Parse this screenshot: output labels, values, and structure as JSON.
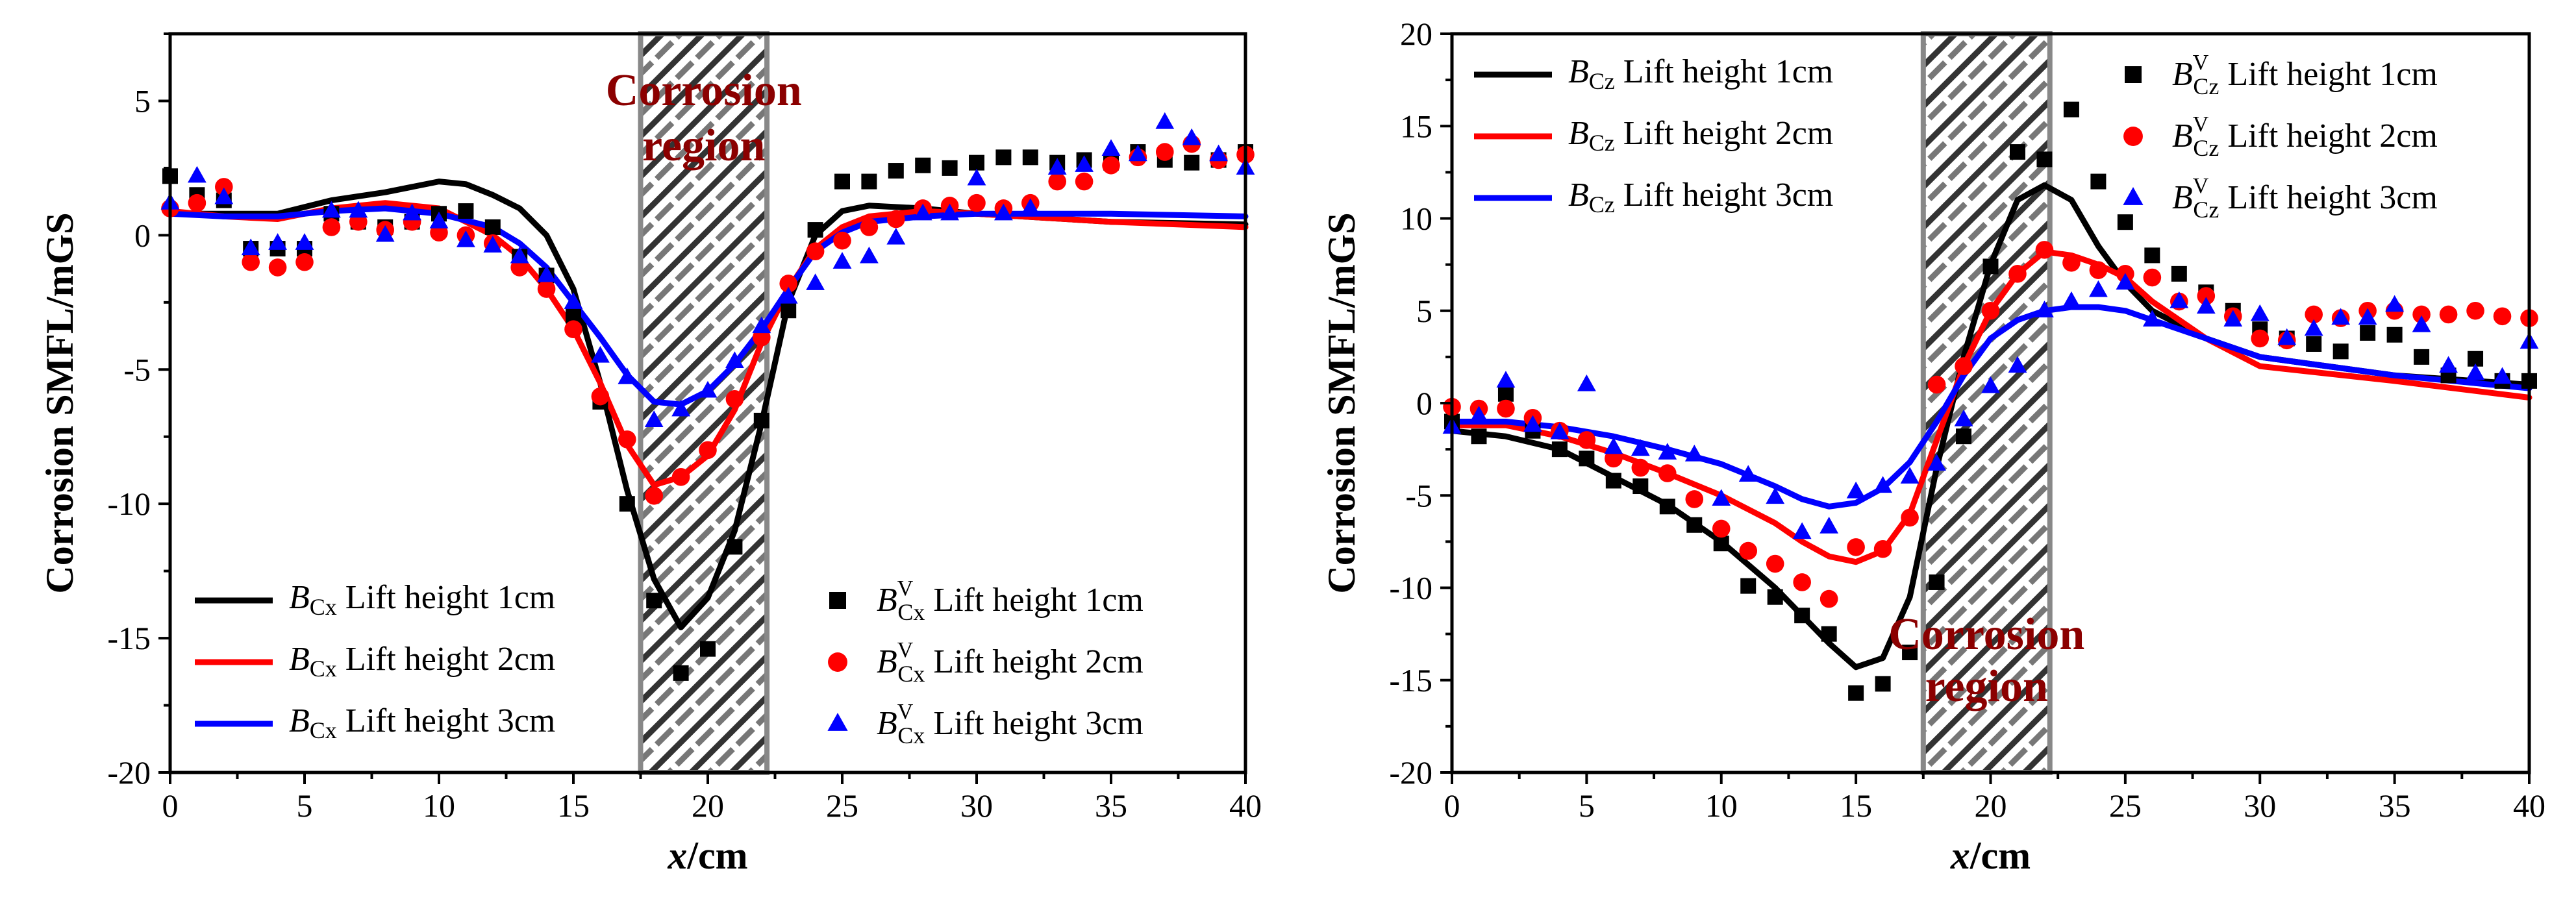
{
  "colors": {
    "s1": "#000000",
    "s2": "#ff0000",
    "s3": "#0000ff",
    "region_text": "#8b0000",
    "region_border": "#888888"
  },
  "chart_data": [
    {
      "type": "line+scatter",
      "ylabel": "Corrosion SMFL/mGS",
      "xlabel": "x/cm",
      "xlim": [
        0,
        40
      ],
      "ylim": [
        -20,
        7.5
      ],
      "xticks": [
        0,
        5,
        10,
        15,
        20,
        25,
        30,
        35,
        40
      ],
      "yticks": [
        -20,
        -15,
        -10,
        -5,
        0,
        5
      ],
      "region": {
        "x": [
          17.5,
          22.2
        ],
        "label_line1": "Corrosion",
        "label_line2": "region",
        "label_pos": "top"
      },
      "lines": [
        {
          "name": "B_Cx Lift height 1cm",
          "var": "B",
          "sub": "Cx",
          "label": " Lift height 1cm",
          "color": "#000000",
          "x": [
            0,
            2,
            4,
            6,
            8,
            10,
            11,
            12,
            13,
            14,
            15,
            16,
            17,
            18,
            19,
            20,
            21,
            22,
            23,
            24,
            25,
            26,
            28,
            30,
            35,
            40
          ],
          "y": [
            0.8,
            0.8,
            0.8,
            1.3,
            1.6,
            2.0,
            1.9,
            1.5,
            1.0,
            0.0,
            -2.0,
            -5.5,
            -9.5,
            -12.8,
            -14.6,
            -13.5,
            -11.0,
            -7.0,
            -2.5,
            0.0,
            0.9,
            1.1,
            1.0,
            0.8,
            0.5,
            0.4
          ]
        },
        {
          "name": "B_Cx Lift height 2cm",
          "var": "B",
          "sub": "Cx",
          "label": " Lift height 2cm",
          "color": "#ff0000",
          "x": [
            0,
            2,
            4,
            6,
            8,
            10,
            12,
            13,
            14,
            15,
            16,
            17,
            18,
            19,
            20,
            21,
            22,
            23,
            24,
            25,
            26,
            28,
            30,
            35,
            40
          ],
          "y": [
            0.9,
            0.7,
            0.6,
            1.0,
            1.2,
            1.0,
            0.0,
            -0.8,
            -2.0,
            -3.5,
            -5.5,
            -7.8,
            -9.3,
            -9.0,
            -8.2,
            -6.5,
            -4.0,
            -2.0,
            -0.5,
            0.3,
            0.7,
            0.9,
            0.8,
            0.5,
            0.3
          ]
        },
        {
          "name": "B_Cx Lift height 3cm",
          "var": "B",
          "sub": "Cx",
          "label": " Lift height 3cm",
          "color": "#0000ff",
          "x": [
            0,
            2,
            4,
            6,
            8,
            10,
            12,
            13,
            14,
            15,
            16,
            17,
            18,
            19,
            20,
            21,
            22,
            23,
            24,
            25,
            26,
            28,
            30,
            35,
            40
          ],
          "y": [
            0.8,
            0.7,
            0.7,
            0.9,
            1.0,
            0.8,
            0.3,
            -0.3,
            -1.2,
            -2.5,
            -3.8,
            -5.2,
            -6.2,
            -6.3,
            -5.8,
            -4.8,
            -3.5,
            -2.0,
            -0.6,
            0.1,
            0.5,
            0.7,
            0.8,
            0.8,
            0.7
          ]
        }
      ],
      "scatter": [
        {
          "name": "B^V_Cx Lift height 1cm",
          "var": "B",
          "sup": "V",
          "sub": "Cx",
          "label": " Lift height 1cm",
          "color": "#000000",
          "marker": "square",
          "x": [
            0,
            1,
            2,
            3,
            4,
            5,
            6,
            7,
            8,
            9,
            10,
            11,
            12,
            13,
            14,
            15,
            16,
            17,
            18,
            19,
            20,
            21,
            22,
            23,
            24,
            25,
            26,
            27,
            28,
            29,
            30,
            31,
            32,
            33,
            34,
            35,
            36,
            37,
            38,
            39,
            40
          ],
          "y": [
            2.2,
            1.5,
            1.3,
            -0.5,
            -0.5,
            -0.5,
            0.8,
            0.5,
            0.3,
            0.5,
            0.8,
            0.9,
            0.3,
            -0.8,
            -1.5,
            -3.0,
            -6.2,
            -10.0,
            -13.6,
            -16.3,
            -15.4,
            -11.6,
            -6.9,
            -2.8,
            0.2,
            2.0,
            2.0,
            2.4,
            2.6,
            2.5,
            2.7,
            2.9,
            2.9,
            2.7,
            2.8,
            2.7,
            3.1,
            2.8,
            2.7,
            2.8,
            3.1
          ]
        },
        {
          "name": "B^V_Cx Lift height 2cm",
          "var": "B",
          "sup": "V",
          "sub": "Cx",
          "label": " Lift height 2cm",
          "color": "#ff0000",
          "marker": "circle",
          "x": [
            0,
            1,
            2,
            3,
            4,
            5,
            6,
            7,
            8,
            9,
            10,
            11,
            12,
            13,
            14,
            15,
            16,
            17,
            18,
            19,
            20,
            21,
            22,
            23,
            24,
            25,
            26,
            27,
            28,
            29,
            30,
            31,
            32,
            33,
            34,
            35,
            36,
            37,
            38,
            39,
            40
          ],
          "y": [
            1.0,
            1.2,
            1.8,
            -1.0,
            -1.2,
            -1.0,
            0.3,
            0.5,
            0.2,
            0.5,
            0.1,
            0.0,
            -0.3,
            -1.2,
            -2.0,
            -3.5,
            -6.0,
            -7.6,
            -9.7,
            -9.0,
            -8.0,
            -6.1,
            -3.8,
            -1.8,
            -0.6,
            -0.2,
            0.3,
            0.6,
            1.0,
            1.1,
            1.2,
            1.0,
            1.2,
            2.0,
            2.0,
            2.6,
            2.9,
            3.1,
            3.4,
            2.8,
            3.0
          ]
        },
        {
          "name": "B^V_Cx Lift height 3cm",
          "var": "B",
          "sup": "V",
          "sub": "Cx",
          "label": " Lift height 3cm",
          "color": "#0000ff",
          "marker": "triangle",
          "x": [
            0,
            1,
            2,
            3,
            4,
            5,
            6,
            7,
            8,
            9,
            10,
            11,
            12,
            13,
            14,
            15,
            16,
            17,
            18,
            19,
            20,
            21,
            22,
            23,
            24,
            25,
            26,
            27,
            28,
            29,
            30,
            31,
            32,
            33,
            34,
            35,
            36,
            37,
            38,
            39,
            40
          ],
          "y": [
            1.2,
            2.2,
            1.4,
            -0.5,
            -0.3,
            -0.3,
            0.9,
            0.9,
            0.0,
            0.8,
            0.5,
            -0.2,
            -0.4,
            -0.8,
            -1.5,
            -2.5,
            -4.5,
            -5.3,
            -6.9,
            -6.5,
            -5.8,
            -4.7,
            -3.4,
            -2.3,
            -1.8,
            -1.0,
            -0.8,
            -0.1,
            0.8,
            0.8,
            2.1,
            0.8,
            1.0,
            2.5,
            2.6,
            3.2,
            3.0,
            4.2,
            3.6,
            3.0,
            2.5
          ]
        }
      ],
      "legend_left": "bottom-left",
      "legend_right": "bottom-right"
    },
    {
      "type": "line+scatter",
      "ylabel": "Corrosion SMFL/mGS",
      "xlabel": "x/cm",
      "xlim": [
        0,
        40
      ],
      "ylim": [
        -20,
        20
      ],
      "xticks": [
        0,
        5,
        10,
        15,
        20,
        25,
        30,
        35,
        40
      ],
      "yticks": [
        -20,
        -15,
        -10,
        -5,
        0,
        5,
        10,
        15,
        20
      ],
      "region": {
        "x": [
          17.5,
          22.2
        ],
        "label_line1": "Corrosion",
        "label_line2": "region",
        "label_pos": "bottom"
      },
      "lines": [
        {
          "name": "B_Cz Lift height 1cm",
          "var": "B",
          "sub": "Cz",
          "label": " Lift height 1cm",
          "color": "#000000",
          "x": [
            0,
            2,
            4,
            6,
            8,
            10,
            12,
            13,
            14,
            15,
            16,
            17,
            18,
            19,
            20,
            21,
            22,
            23,
            24,
            25,
            26,
            28,
            30,
            35,
            40
          ],
          "y": [
            -1.5,
            -1.8,
            -2.5,
            -4.0,
            -5.5,
            -7.5,
            -10.0,
            -11.5,
            -13.0,
            -14.3,
            -13.8,
            -10.5,
            -3.5,
            2.5,
            7.5,
            11.0,
            11.8,
            11.0,
            8.5,
            6.5,
            5.0,
            3.5,
            2.5,
            1.5,
            1.0
          ]
        },
        {
          "name": "B_Cz Lift height 2cm",
          "var": "B",
          "sub": "Cz",
          "label": " Lift height 2cm",
          "color": "#ff0000",
          "x": [
            0,
            2,
            4,
            6,
            8,
            10,
            12,
            13,
            14,
            15,
            16,
            17,
            18,
            19,
            20,
            21,
            22,
            23,
            24,
            25,
            26,
            28,
            30,
            35,
            40
          ],
          "y": [
            -1.2,
            -1.2,
            -1.8,
            -2.7,
            -3.8,
            -5.0,
            -6.5,
            -7.5,
            -8.3,
            -8.6,
            -8.0,
            -6.0,
            -2.0,
            2.0,
            5.0,
            7.0,
            8.2,
            8.0,
            7.5,
            6.8,
            5.5,
            3.5,
            2.0,
            1.2,
            0.3
          ]
        },
        {
          "name": "B_Cz Lift height 3cm",
          "var": "B",
          "sub": "Cz",
          "label": " Lift height 3cm",
          "color": "#0000ff",
          "x": [
            0,
            2,
            4,
            6,
            8,
            10,
            12,
            13,
            14,
            15,
            16,
            17,
            18,
            19,
            20,
            21,
            22,
            23,
            24,
            25,
            26,
            28,
            30,
            35,
            40
          ],
          "y": [
            -1.0,
            -1.0,
            -1.3,
            -1.8,
            -2.5,
            -3.3,
            -4.5,
            -5.2,
            -5.6,
            -5.4,
            -4.6,
            -3.2,
            -1.0,
            1.5,
            3.5,
            4.5,
            5.0,
            5.2,
            5.2,
            5.0,
            4.5,
            3.5,
            2.5,
            1.5,
            0.8
          ]
        }
      ],
      "scatter": [
        {
          "name": "B^V_Cz Lift height 1cm",
          "var": "B",
          "sup": "V",
          "sub": "Cz",
          "label": " Lift height 1cm",
          "color": "#000000",
          "marker": "square",
          "x": [
            0,
            1,
            2,
            3,
            4,
            5,
            6,
            7,
            8,
            9,
            10,
            11,
            12,
            13,
            14,
            15,
            16,
            17,
            18,
            19,
            20,
            21,
            22,
            23,
            24,
            25,
            26,
            27,
            28,
            29,
            30,
            31,
            32,
            33,
            34,
            35,
            36,
            37,
            38,
            39,
            40
          ],
          "y": [
            -1.0,
            -1.8,
            0.5,
            -1.5,
            -2.5,
            -3.0,
            -4.2,
            -4.5,
            -5.6,
            -6.6,
            -7.6,
            -9.9,
            -10.5,
            -11.5,
            -12.5,
            -15.7,
            -15.2,
            -13.5,
            -9.7,
            -1.8,
            7.4,
            13.6,
            13.2,
            15.9,
            12.0,
            9.8,
            8.0,
            7.0,
            6.0,
            5.0,
            4.0,
            3.5,
            3.2,
            2.8,
            3.8,
            3.7,
            2.5,
            1.5,
            2.4,
            1.2,
            1.2
          ]
        },
        {
          "name": "B^V_Cz Lift height 2cm",
          "var": "B",
          "sup": "V",
          "sub": "Cz",
          "label": " Lift height 2cm",
          "color": "#ff0000",
          "marker": "circle",
          "x": [
            0,
            1,
            2,
            3,
            4,
            5,
            6,
            7,
            8,
            9,
            10,
            11,
            12,
            13,
            14,
            15,
            16,
            17,
            18,
            19,
            20,
            21,
            22,
            23,
            24,
            25,
            26,
            27,
            28,
            29,
            30,
            31,
            32,
            33,
            34,
            35,
            36,
            37,
            38,
            39,
            40
          ],
          "y": [
            -0.2,
            -0.3,
            -0.3,
            -0.8,
            -1.5,
            -2.0,
            -3.0,
            -3.5,
            -3.8,
            -5.2,
            -6.8,
            -8.0,
            -8.7,
            -9.7,
            -10.6,
            -7.8,
            -7.9,
            -6.2,
            1.0,
            2.0,
            5.0,
            7.0,
            8.3,
            7.6,
            7.2,
            7.0,
            6.8,
            5.5,
            5.8,
            4.7,
            3.5,
            3.4,
            4.8,
            4.6,
            5.0,
            5.0,
            4.8,
            4.8,
            5.0,
            4.7,
            4.6
          ]
        },
        {
          "name": "B^V_Cz Lift height 3cm",
          "var": "B",
          "sup": "V",
          "sub": "Cz",
          "label": " Lift height 3cm",
          "color": "#0000ff",
          "marker": "triangle",
          "x": [
            0,
            1,
            2,
            3,
            4,
            5,
            6,
            7,
            8,
            9,
            10,
            11,
            12,
            13,
            14,
            15,
            16,
            17,
            18,
            19,
            20,
            21,
            22,
            23,
            24,
            25,
            26,
            27,
            28,
            29,
            30,
            31,
            32,
            33,
            34,
            35,
            36,
            37,
            38,
            39,
            40
          ],
          "y": [
            -1.3,
            -0.7,
            1.2,
            -1.2,
            -1.6,
            1.0,
            -2.4,
            -2.5,
            -2.7,
            -2.8,
            -5.2,
            -3.9,
            -5.1,
            -7.0,
            -6.7,
            -4.8,
            -4.5,
            -4.0,
            -3.3,
            -0.9,
            0.9,
            2.0,
            5.0,
            5.5,
            6.1,
            6.5,
            4.5,
            5.5,
            5.2,
            4.5,
            4.8,
            3.5,
            4.0,
            4.6,
            4.6,
            5.3,
            4.2,
            2.0,
            1.6,
            1.4,
            3.3
          ]
        }
      ],
      "legend_left": "top-left",
      "legend_right": "top-right"
    }
  ]
}
